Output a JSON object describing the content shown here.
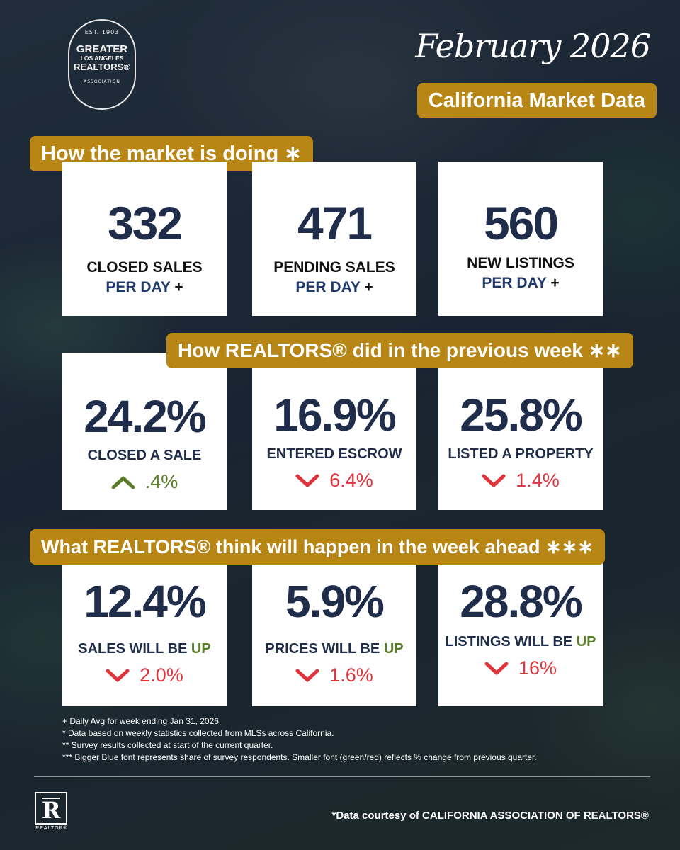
{
  "logo": {
    "est": "EST. 1903",
    "line1": "GREATER",
    "line2": "LOS ANGELES",
    "line3": "REALTORS®",
    "line4": "ASSOCIATION"
  },
  "header": {
    "title": "February 2026",
    "subtitle": "California Market Data"
  },
  "sections": {
    "market": "How the market is doing ∗",
    "previous_week": "How REALTORS® did in the previous week ∗∗",
    "week_ahead": "What REALTORS® think will happen in the week ahead  ∗∗∗"
  },
  "market_cards": [
    {
      "value": "332",
      "label": "CLOSED SALES",
      "sub": "PER DAY",
      "plus": "+"
    },
    {
      "value": "471",
      "label": "PENDING SALES",
      "sub": "PER DAY",
      "plus": "+"
    },
    {
      "value": "560",
      "label": "NEW LISTINGS",
      "sub": "PER DAY",
      "plus": "+"
    }
  ],
  "previous_cards": [
    {
      "value": "24.2%",
      "label": "CLOSED A SALE",
      "change": ".4%",
      "direction": "up"
    },
    {
      "value": "16.9%",
      "label": "ENTERED ESCROW",
      "change": "6.4%",
      "direction": "down"
    },
    {
      "value": "25.8%",
      "label": "LISTED A PROPERTY",
      "change": "1.4%",
      "direction": "down"
    }
  ],
  "ahead_cards": [
    {
      "value": "12.4%",
      "label": "SALES WILL BE",
      "up_word": "UP",
      "change": "2.0%",
      "direction": "down"
    },
    {
      "value": "5.9%",
      "label": "PRICES WILL BE",
      "up_word": "UP",
      "change": "1.6%",
      "direction": "down"
    },
    {
      "value": "28.8%",
      "label": "LISTINGS WILL BE",
      "up_word": "UP",
      "change": "16%",
      "direction": "down"
    }
  ],
  "footnotes": [
    "+ Daily Avg for week ending Jan 31, 2026",
    "* Data based on weekly statistics collected from MLSs across California.",
    "** Survey results collected at start of the current quarter.",
    "*** Bigger Blue font represents share of survey respondents. Smaller font (green/red) reflects % change from previous quarter."
  ],
  "footer": {
    "realtor_mark": "R",
    "realtor_word": "REALTOR®",
    "credit": "*Data courtesy of CALIFORNIA ASSOCIATION OF REALTORS®"
  },
  "colors": {
    "gold": "#b78614",
    "navy": "#1f2d4a",
    "green": "#5a7d2a",
    "red": "#e0343c"
  },
  "icons": {
    "up": "chevron-up-icon",
    "down": "chevron-down-icon"
  }
}
